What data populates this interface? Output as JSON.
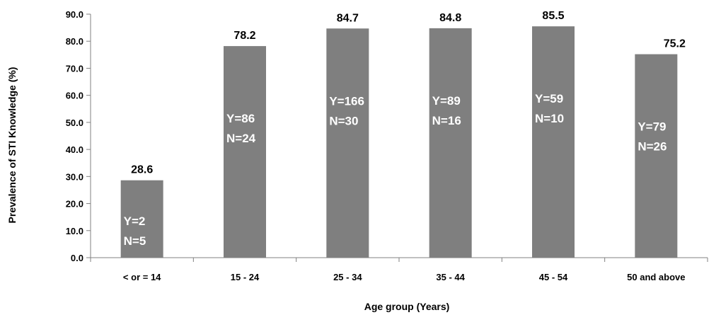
{
  "chart_data": {
    "type": "bar",
    "xlabel": "Age group (Years)",
    "ylabel": "Prevalence of STI Knowledge (%)",
    "ylim": [
      0,
      90
    ],
    "ytick_step": 10,
    "ytick_labels": [
      "0.0",
      "10.0",
      "20.0",
      "30.0",
      "40.0",
      "50.0",
      "60.0",
      "70.0",
      "80.0",
      "90.0"
    ],
    "grid": false,
    "legend": "none",
    "bar_color": "#7f7f7f",
    "categories": [
      "< or = 14",
      "15 - 24",
      "25 - 34",
      "35 - 44",
      "45 - 54",
      "50 and above"
    ],
    "values": [
      28.6,
      78.2,
      84.7,
      84.8,
      85.5,
      75.2
    ],
    "value_labels": [
      "28.6",
      "78.2",
      "84.7",
      "84.8",
      "85.5",
      "75.2"
    ],
    "annotations": [
      {
        "y": "Y=2",
        "n": "N=5"
      },
      {
        "y": "Y=86",
        "n": "N=24"
      },
      {
        "y": "Y=166",
        "n": "N=30"
      },
      {
        "y": "Y=89",
        "n": "N=16"
      },
      {
        "y": "Y=59",
        "n": "N=10"
      },
      {
        "y": "Y=79",
        "n": "N=26"
      }
    ]
  }
}
